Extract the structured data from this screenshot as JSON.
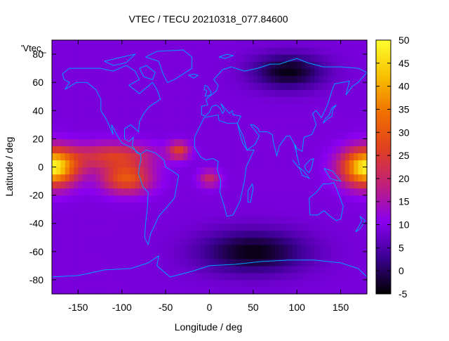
{
  "chart_data": {
    "type": "heatmap",
    "title": "VTEC / TECU 20210318_077.84600",
    "xlabel": "Longitude / deg",
    "ylabel": "Latitude / deg",
    "series_key": "'Vtec_",
    "xlim": [
      -180,
      180
    ],
    "ylim": [
      -90,
      90
    ],
    "xticks": [
      -150,
      -100,
      -50,
      0,
      50,
      100,
      150
    ],
    "yticks": [
      -80,
      -60,
      -40,
      -20,
      0,
      20,
      40,
      60,
      80
    ],
    "colorbar": {
      "range": [
        -5,
        50
      ],
      "ticks": [
        -5,
        0,
        5,
        10,
        15,
        20,
        25,
        30,
        35,
        40,
        45,
        50
      ],
      "stops": [
        "#000000",
        "#3a0090",
        "#8a00f0",
        "#c0207a",
        "#e04020",
        "#f07000",
        "#f8c000",
        "#ffff30"
      ]
    },
    "field": {
      "background_tecu": 9,
      "features": [
        {
          "name": "crest-pacific-east",
          "lon": 180,
          "lat": 0,
          "peak_tecu": 49,
          "lon_spread": 28,
          "lat_spread": 13
        },
        {
          "name": "crest-pacific-west",
          "lon": -180,
          "lat": 0,
          "peak_tecu": 49,
          "lon_spread": 28,
          "lat_spread": 13
        },
        {
          "name": "north-crest-americas",
          "lon": -110,
          "lat": 8,
          "peak_tecu": 25,
          "lon_spread": 45,
          "lat_spread": 9
        },
        {
          "name": "south-crest-south-america",
          "lon": -95,
          "lat": -8,
          "peak_tecu": 30,
          "lon_spread": 28,
          "lat_spread": 10
        },
        {
          "name": "north-crest-atlantic",
          "lon": -35,
          "lat": 12,
          "peak_tecu": 25,
          "lon_spread": 12,
          "lat_spread": 6
        },
        {
          "name": "equatorial-atlantic",
          "lon": 0,
          "lat": -8,
          "peak_tecu": 20,
          "lon_spread": 12,
          "lat_spread": 6
        },
        {
          "name": "southern-trough",
          "lon": 50,
          "lat": -60,
          "peak_tecu": -4,
          "lon_spread": 60,
          "lat_spread": 15
        },
        {
          "name": "northern-trough",
          "lon": 90,
          "lat": 68,
          "peak_tecu": -4,
          "lon_spread": 40,
          "lat_spread": 12
        }
      ]
    }
  },
  "colors": {
    "coastline": "#00a0ff",
    "frame": "#000000"
  }
}
